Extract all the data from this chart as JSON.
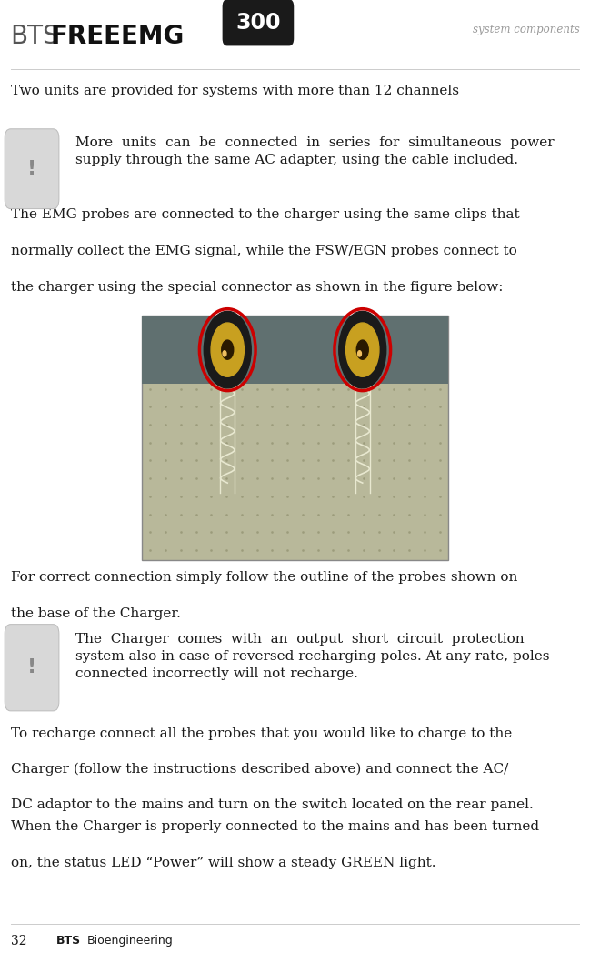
{
  "page_width": 6.49,
  "page_height": 10.58,
  "bg_color": "#ffffff",
  "header": {
    "bts_text": "BTS",
    "freeemg_text": "FREEEMG",
    "badge_text": "300",
    "badge_bg": "#1a1a1a",
    "badge_fg": "#ffffff",
    "right_text": "system components",
    "right_color": "#999999"
  },
  "line_color": "#cccccc",
  "text_color": "#1a1a1a",
  "text1": "Two units are provided for systems with more than 12 channels",
  "note1_text_line1": "More  units  can  be  connected  in  series  for  simultaneous  power",
  "note1_text_line2": "supply through the same AC adapter, using the cable included.",
  "text2_lines": [
    "The EMG probes are connected to the charger using the same clips that",
    "normally collect the EMG signal, while the FSW/EGN probes connect to",
    "the charger using the special connector as shown in the figure below:"
  ],
  "text3_lines": [
    "For correct connection simply follow the outline of the probes shown on",
    "the base of the Charger."
  ],
  "note2_text_line1": "The  Charger  comes  with  an  output  short  circuit  protection",
  "note2_text_line2": "system also in case of reversed recharging poles. At any rate, poles",
  "note2_text_line3": "connected incorrectly will not recharge.",
  "text4_lines": [
    "To recharge connect all the probes that you would like to charge to the",
    "Charger (follow the instructions described above) and connect the AC/",
    "DC adaptor to the mains and turn on the switch located on the rear panel."
  ],
  "text5_lines": [
    "When the Charger is properly connected to the mains and has been turned",
    "on, the status LED “Power” will show a steady GREEN light."
  ],
  "footer_page": "32",
  "footer_bts": "BTS",
  "footer_bio": "Bioengineering",
  "icon_color": "#cccccc",
  "icon_excl_color": "#888888",
  "img_top_color": "#607070",
  "img_board_color": "#b8b89a",
  "img_dot_color": "#9a9a7a",
  "img_connector_dark": "#222222",
  "img_connector_gold": "#c8a020",
  "img_connector_red": "#cc0000",
  "img_wire_color": "#e8e8d0",
  "img_border_color": "#888888"
}
